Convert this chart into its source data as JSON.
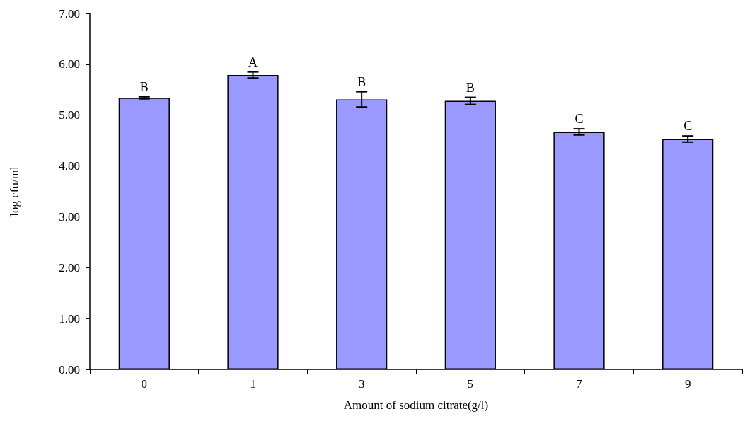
{
  "chart_data": {
    "type": "bar",
    "xlabel": "Amount of sodium citrate(g/l)",
    "ylabel": "log cfu/ml",
    "categories": [
      "0",
      "1",
      "3",
      "5",
      "7",
      "9"
    ],
    "values": [
      5.34,
      5.79,
      5.31,
      5.28,
      4.67,
      4.53
    ],
    "errors": [
      0.02,
      0.06,
      0.15,
      0.07,
      0.06,
      0.06
    ],
    "color": "#9999ff",
    "ylim": [
      0,
      7
    ],
    "yticks": [
      {
        "value": 0,
        "label": "0.00"
      },
      {
        "value": 1,
        "label": "1.00"
      },
      {
        "value": 2,
        "label": "2.00"
      },
      {
        "value": 3,
        "label": "3.00"
      },
      {
        "value": 4,
        "label": "4.00"
      },
      {
        "value": 5,
        "label": "5.00"
      },
      {
        "value": 6,
        "label": "6.00"
      },
      {
        "value": 7,
        "label": "7.00"
      }
    ],
    "grid": false,
    "annotations": [
      "B",
      "A",
      "B",
      "B",
      "C",
      "C"
    ]
  }
}
